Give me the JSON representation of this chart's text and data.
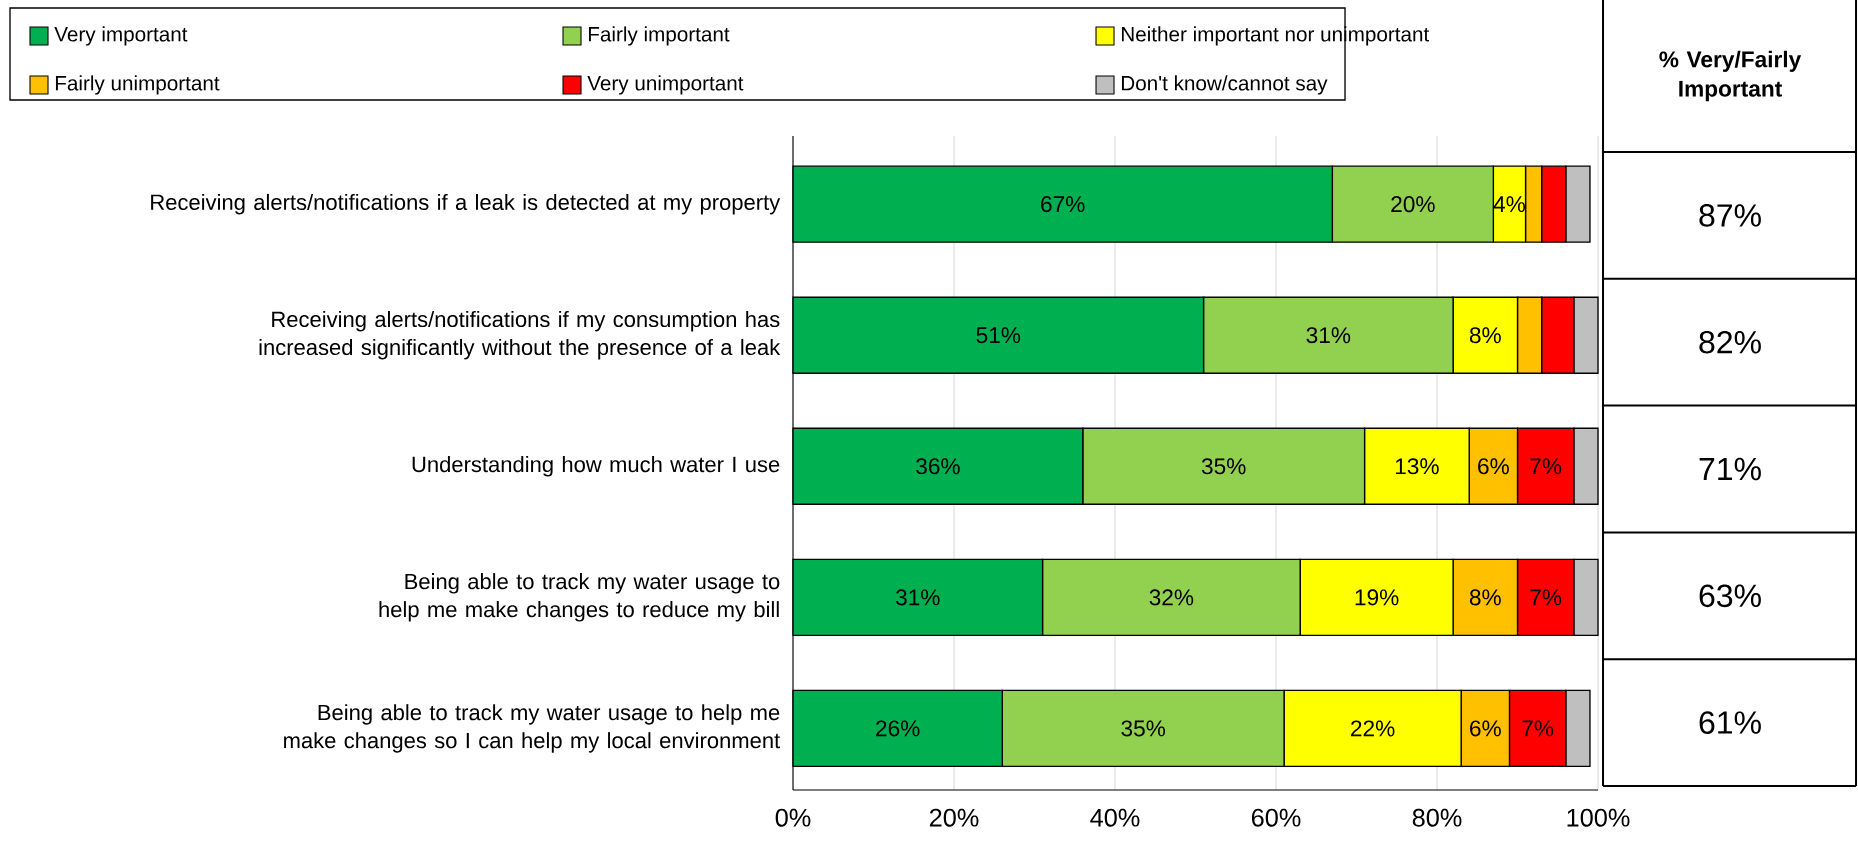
{
  "chart_data": {
    "type": "bar",
    "orientation": "horizontal",
    "stacked": true,
    "categories": [
      "Receiving alerts/notifications if a leak is detected at my property",
      "Receiving alerts/notifications if my consumption has increased significantly without the presence of a leak",
      "Understanding how much water I use",
      "Being able to track my water usage to help me make changes to reduce my bill",
      "Being able to track my water usage to help me make changes so I can help my local environment"
    ],
    "series": [
      {
        "name": "Very important",
        "color": "#00b050",
        "values": [
          67,
          51,
          36,
          31,
          26
        ],
        "value_labels": [
          "67%",
          "51%",
          "36%",
          "31%",
          "26%"
        ]
      },
      {
        "name": "Fairly important",
        "color": "#92d050",
        "values": [
          20,
          31,
          35,
          32,
          35
        ],
        "value_labels": [
          "20%",
          "31%",
          "35%",
          "32%",
          "35%"
        ]
      },
      {
        "name": "Neither important nor unimportant",
        "color": "#ffff00",
        "values": [
          4,
          8,
          13,
          19,
          22
        ],
        "value_labels": [
          "4%",
          "8%",
          "13%",
          "19%",
          "22%"
        ]
      },
      {
        "name": "Fairly unimportant",
        "color": "#ffc000",
        "values": [
          2,
          3,
          6,
          8,
          6
        ],
        "value_labels": [
          null,
          null,
          "6%",
          "8%",
          "6%"
        ]
      },
      {
        "name": "Very unimportant",
        "color": "#ff0000",
        "values": [
          3,
          4,
          7,
          7,
          7
        ],
        "value_labels": [
          null,
          null,
          "7%",
          "7%",
          "7%"
        ]
      },
      {
        "name": "Don't know/cannot say",
        "color": "#bfbfbf",
        "values": [
          3,
          3,
          3,
          3,
          3
        ],
        "value_labels": [
          null,
          null,
          null,
          null,
          null
        ]
      }
    ],
    "xlim": [
      0,
      100
    ],
    "xticks": [
      {
        "value": 0,
        "label": "0%"
      },
      {
        "value": 20,
        "label": "20%"
      },
      {
        "value": 40,
        "label": "40%"
      },
      {
        "value": 60,
        "label": "60%"
      },
      {
        "value": 80,
        "label": "80%"
      },
      {
        "value": 100,
        "label": "100%"
      }
    ],
    "grid": "x",
    "legend": "top",
    "annotations": [
      "% Very/Fairly Important",
      "87%",
      "82%",
      "71%",
      "63%",
      "61%"
    ]
  }
}
